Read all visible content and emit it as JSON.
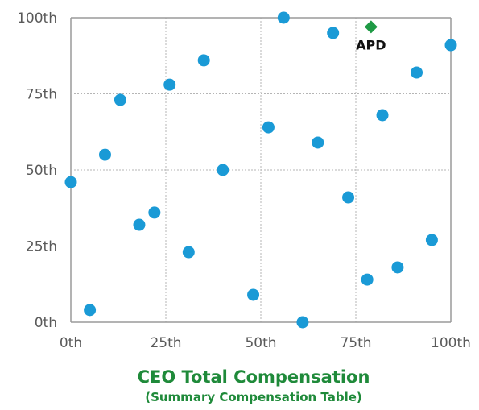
{
  "chart_data": {
    "type": "scatter",
    "title": "",
    "xlabel": "CEO Total Compensation",
    "xlabel_sub": "(Summary Compensation Table)",
    "ylabel": "",
    "xlim": [
      0,
      100
    ],
    "ylim": [
      0,
      100
    ],
    "xticks": [
      "0th",
      "25th",
      "50th",
      "75th",
      "100th"
    ],
    "yticks": [
      "0th",
      "25th",
      "50th",
      "75th",
      "100th"
    ],
    "grid": true,
    "point_color": "#1a9ad6",
    "highlight_color": "#1f9a45",
    "points": [
      {
        "x": 0,
        "y": 46
      },
      {
        "x": 5,
        "y": 4
      },
      {
        "x": 9,
        "y": 55
      },
      {
        "x": 13,
        "y": 73
      },
      {
        "x": 18,
        "y": 32
      },
      {
        "x": 22,
        "y": 36
      },
      {
        "x": 26,
        "y": 78
      },
      {
        "x": 31,
        "y": 23
      },
      {
        "x": 35,
        "y": 86
      },
      {
        "x": 40,
        "y": 50
      },
      {
        "x": 48,
        "y": 9
      },
      {
        "x": 52,
        "y": 64
      },
      {
        "x": 56,
        "y": 100
      },
      {
        "x": 61,
        "y": 0
      },
      {
        "x": 65,
        "y": 59
      },
      {
        "x": 69,
        "y": 95
      },
      {
        "x": 73,
        "y": 41
      },
      {
        "x": 78,
        "y": 14
      },
      {
        "x": 82,
        "y": 68
      },
      {
        "x": 86,
        "y": 18
      },
      {
        "x": 91,
        "y": 82
      },
      {
        "x": 95,
        "y": 27
      },
      {
        "x": 100,
        "y": 91
      }
    ],
    "highlight": {
      "label": "APD",
      "x": 79,
      "y": 97
    }
  }
}
